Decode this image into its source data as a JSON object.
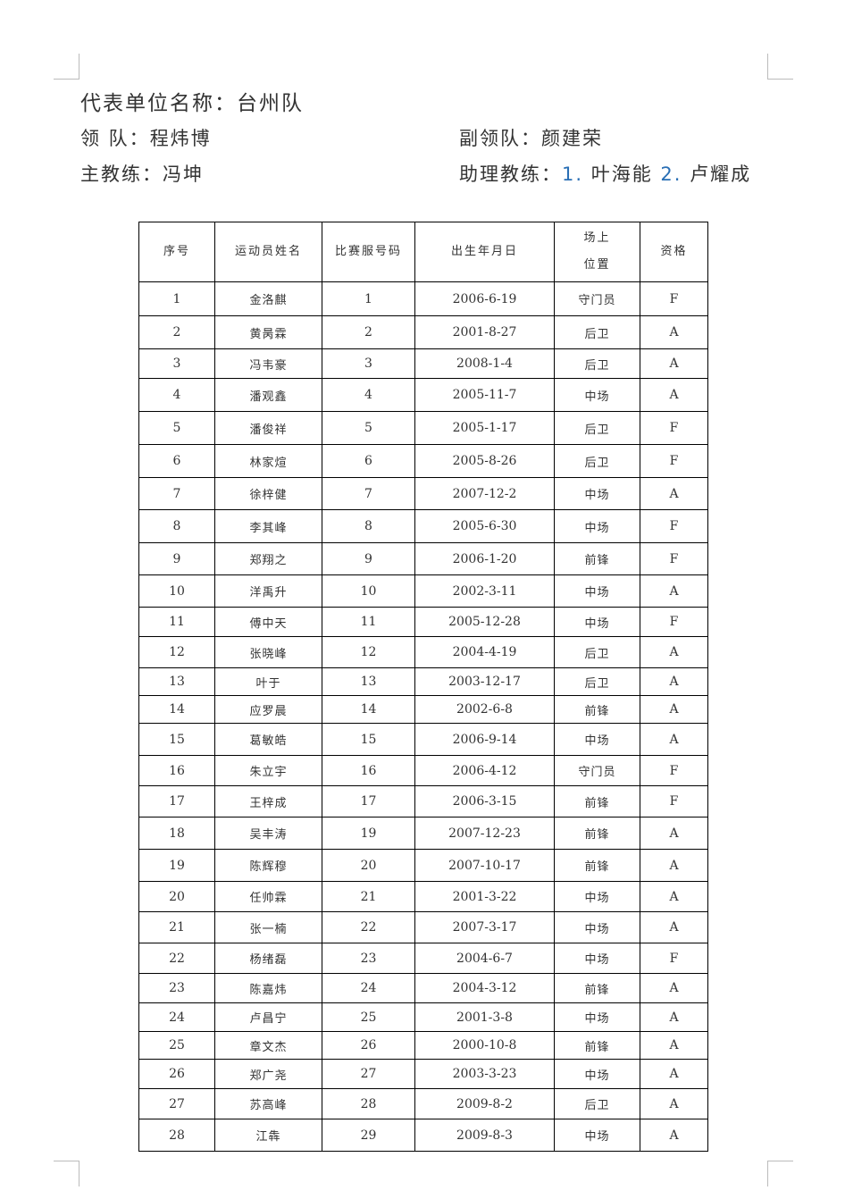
{
  "header": {
    "unit_label": "代表单位名称：",
    "unit_value": "台州队",
    "leader_label": "领 队：",
    "leader_value": "程炜博",
    "deputy_label": "副领队：",
    "deputy_value": "颜建荣",
    "coach_label": "主教练：",
    "coach_value": "冯坤",
    "assistant_label": "助理教练：",
    "assistant_1_num": "1.",
    "assistant_1": "叶海能",
    "assistant_2_num": "2.",
    "assistant_2": "卢耀成"
  },
  "table": {
    "columns": [
      "序号",
      "运动员姓名",
      "比赛服号码",
      "出生年月日",
      "场上位置",
      "资格"
    ],
    "position_header_lines": [
      "场上",
      "位置"
    ],
    "rows": [
      [
        "1",
        "金洛麒",
        "1",
        "2006-6-19",
        "守门员",
        "F"
      ],
      [
        "2",
        "黄昺霖",
        "2",
        "2001-8-27",
        "后卫",
        "A"
      ],
      [
        "3",
        "冯韦豪",
        "3",
        "2008-1-4",
        "后卫",
        "A"
      ],
      [
        "4",
        "潘观鑫",
        "4",
        "2005-11-7",
        "中场",
        "A"
      ],
      [
        "5",
        "潘俊祥",
        "5",
        "2005-1-17",
        "后卫",
        "F"
      ],
      [
        "6",
        "林家煊",
        "6",
        "2005-8-26",
        "后卫",
        "F"
      ],
      [
        "7",
        "徐梓健",
        "7",
        "2007-12-2",
        "中场",
        "A"
      ],
      [
        "8",
        "李其峰",
        "8",
        "2005-6-30",
        "中场",
        "F"
      ],
      [
        "9",
        "郑翔之",
        "9",
        "2006-1-20",
        "前锋",
        "F"
      ],
      [
        "10",
        "洋禹升",
        "10",
        "2002-3-11",
        "中场",
        "A"
      ],
      [
        "11",
        "傅中天",
        "11",
        "2005-12-28",
        "中场",
        "F"
      ],
      [
        "12",
        "张晓峰",
        "12",
        "2004-4-19",
        "后卫",
        "A"
      ],
      [
        "13",
        "叶于",
        "13",
        "2003-12-17",
        "后卫",
        "A"
      ],
      [
        "14",
        "应罗晨",
        "14",
        "2002-6-8",
        "前锋",
        "A"
      ],
      [
        "15",
        "葛敏皓",
        "15",
        "2006-9-14",
        "中场",
        "A"
      ],
      [
        "16",
        "朱立宇",
        "16",
        "2006-4-12",
        "守门员",
        "F"
      ],
      [
        "17",
        "王梓成",
        "17",
        "2006-3-15",
        "前锋",
        "F"
      ],
      [
        "18",
        "吴丰涛",
        "19",
        "2007-12-23",
        "前锋",
        "A"
      ],
      [
        "19",
        "陈辉穆",
        "20",
        "2007-10-17",
        "前锋",
        "A"
      ],
      [
        "20",
        "任帅霖",
        "21",
        "2001-3-22",
        "中场",
        "A"
      ],
      [
        "21",
        "张一楠",
        "22",
        "2007-3-17",
        "中场",
        "A"
      ],
      [
        "22",
        "杨绪磊",
        "23",
        "2004-6-7",
        "中场",
        "F"
      ],
      [
        "23",
        "陈嘉炜",
        "24",
        "2004-3-12",
        "前锋",
        "A"
      ],
      [
        "24",
        "卢昌宁",
        "25",
        "2001-3-8",
        "中场",
        "A"
      ],
      [
        "25",
        "章文杰",
        "26",
        "2000-10-8",
        "前锋",
        "A"
      ],
      [
        "26",
        "郑广尧",
        "27",
        "2003-3-23",
        "中场",
        "A"
      ],
      [
        "27",
        "苏高峰",
        "28",
        "2009-8-2",
        "后卫",
        "A"
      ],
      [
        "28",
        "江犇",
        "29",
        "2009-8-3",
        "中场",
        "A"
      ]
    ]
  }
}
